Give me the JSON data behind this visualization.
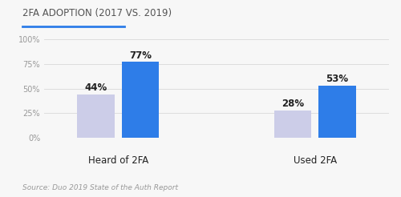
{
  "title": "2FA ADOPTION (2017 VS. 2019)",
  "source": "Source: Duo 2019 State of the Auth Report",
  "groups": [
    "Heard of 2FA",
    "Used 2FA"
  ],
  "years": [
    "2017",
    "2019"
  ],
  "values": [
    [
      44,
      77
    ],
    [
      28,
      53
    ]
  ],
  "bar_colors": [
    "#cccde8",
    "#2e7de8"
  ],
  "year_colors": [
    "#999999",
    "#2e7de8"
  ],
  "label_color": "#222222",
  "title_color": "#555555",
  "grid_color": "#dddddd",
  "tick_color": "#999999",
  "background_color": "#f7f7f7",
  "ylim": [
    0,
    100
  ],
  "yticks": [
    0,
    25,
    50,
    75,
    100
  ],
  "ytick_labels": [
    "0%",
    "25%",
    "50%",
    "75%",
    "100%"
  ],
  "bar_width": 0.3,
  "title_line_color": "#2e7de8",
  "title_fontsize": 8.5,
  "group_label_fontsize": 8.5,
  "year_label_fontsize": 7.0,
  "tick_fontsize": 7.0,
  "source_fontsize": 6.5,
  "value_fontsize": 8.5
}
